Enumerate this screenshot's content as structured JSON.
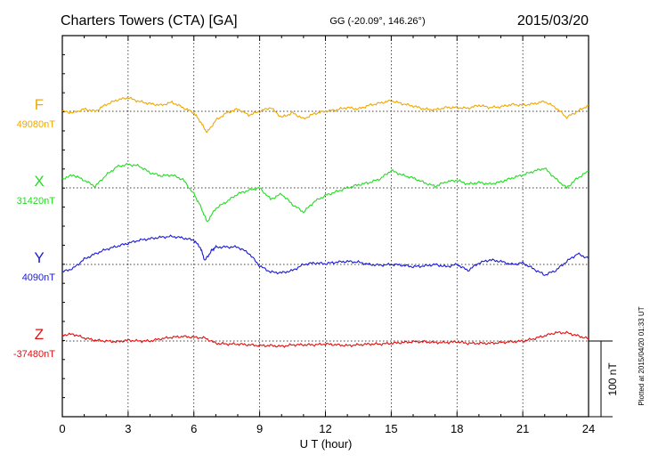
{
  "header": {
    "station": "Charters Towers (CTA)  [GA]",
    "coords": "GG (-20.09°, 146.26°)",
    "date": "2015/03/20"
  },
  "footer": {
    "plotted_note": "Plotted at 2015/04/20 01:33 UT"
  },
  "chart_data": {
    "type": "line",
    "xlabel": "U T (hour)",
    "xlim": [
      0,
      24
    ],
    "x_ticks": [
      0,
      3,
      6,
      9,
      12,
      15,
      18,
      21,
      24
    ],
    "grid": true,
    "scale_bar": {
      "label": "100 nT",
      "value_nT": 100
    },
    "series": [
      {
        "name": "F",
        "baseline_label": "49080nT",
        "baseline_nT": 49080,
        "color": "#f0a800",
        "x": [
          0,
          0.5,
          1,
          1.5,
          2,
          2.5,
          3,
          3.5,
          4,
          4.5,
          5,
          5.5,
          6,
          6.3,
          6.6,
          7,
          7.5,
          8,
          8.5,
          9,
          9.5,
          10,
          10.5,
          11,
          11.5,
          12,
          12.5,
          13,
          13.5,
          14,
          14.5,
          15,
          15.5,
          16,
          16.5,
          17,
          17.5,
          18,
          18.5,
          19,
          19.5,
          20,
          20.5,
          21,
          21.5,
          22,
          22.5,
          23,
          23.5,
          24
        ],
        "values": [
          49080,
          49078,
          49083,
          49080,
          49089,
          49095,
          49098,
          49093,
          49090,
          49088,
          49092,
          49085,
          49078,
          49066,
          49052,
          49068,
          49078,
          49083,
          49075,
          49080,
          49085,
          49072,
          49078,
          49070,
          49077,
          49080,
          49082,
          49085,
          49083,
          49088,
          49091,
          49094,
          49090,
          49087,
          49083,
          49082,
          49085,
          49085,
          49084,
          49088,
          49085,
          49086,
          49089,
          49088,
          49090,
          49093,
          49085,
          49072,
          49080,
          49088
        ]
      },
      {
        "name": "X",
        "baseline_label": "31420nT",
        "baseline_nT": 31420,
        "color": "#22dd22",
        "x": [
          0,
          0.5,
          1,
          1.5,
          2,
          2.5,
          3,
          3.5,
          4,
          4.5,
          5,
          5.5,
          6,
          6.3,
          6.6,
          7,
          7.5,
          8,
          8.5,
          9,
          9.5,
          10,
          10.5,
          11,
          11.5,
          12,
          12.5,
          13,
          13.5,
          14,
          14.5,
          15,
          15.5,
          16,
          16.5,
          17,
          17.5,
          18,
          18.5,
          19,
          19.5,
          20,
          20.5,
          21,
          21.5,
          22,
          22.5,
          23,
          23.5,
          24
        ],
        "values": [
          31432,
          31437,
          31430,
          31422,
          31437,
          31448,
          31451,
          31449,
          31440,
          31436,
          31437,
          31431,
          31412,
          31396,
          31375,
          31393,
          31402,
          31412,
          31417,
          31420,
          31405,
          31412,
          31398,
          31388,
          31402,
          31410,
          31415,
          31420,
          31424,
          31427,
          31432,
          31443,
          31437,
          31433,
          31427,
          31422,
          31428,
          31430,
          31425,
          31427,
          31425,
          31428,
          31433,
          31437,
          31442,
          31446,
          31432,
          31420,
          31433,
          31442
        ]
      },
      {
        "name": "Y",
        "baseline_label": "4090nT",
        "baseline_nT": 4090,
        "color": "#1a1ad8",
        "x": [
          0,
          0.5,
          1,
          1.5,
          2,
          2.5,
          3,
          3.5,
          4,
          4.5,
          5,
          5.5,
          6,
          6.3,
          6.5,
          6.8,
          7,
          7.5,
          8,
          8.5,
          9,
          9.5,
          10,
          10.5,
          11,
          11.5,
          12,
          12.5,
          13,
          13.5,
          14,
          14.5,
          15,
          15.5,
          16,
          16.5,
          17,
          17.5,
          18,
          18.5,
          19,
          19.5,
          20,
          20.5,
          21,
          21.5,
          22,
          22.5,
          23,
          23.5,
          24
        ],
        "values": [
          4080,
          4085,
          4097,
          4104,
          4110,
          4114,
          4118,
          4122,
          4124,
          4126,
          4127,
          4125,
          4122,
          4112,
          4095,
          4108,
          4113,
          4113,
          4113,
          4105,
          4088,
          4080,
          4079,
          4082,
          4090,
          4092,
          4091,
          4093,
          4094,
          4093,
          4090,
          4089,
          4090,
          4089,
          4087,
          4088,
          4090,
          4087,
          4090,
          4082,
          4092,
          4096,
          4094,
          4090,
          4092,
          4084,
          4076,
          4082,
          4094,
          4104,
          4098
        ]
      },
      {
        "name": "Z",
        "baseline_label": "-37480nT",
        "baseline_nT": -37480,
        "color": "#e01010",
        "x": [
          0,
          0.5,
          1,
          1.5,
          2,
          2.5,
          3,
          3.5,
          4,
          4.5,
          5,
          5.5,
          6,
          6.5,
          7,
          7.5,
          8,
          8.5,
          9,
          9.5,
          10,
          10.5,
          11,
          11.5,
          12,
          12.5,
          13,
          13.5,
          14,
          14.5,
          15,
          15.5,
          16,
          16.5,
          17,
          17.5,
          18,
          18.5,
          19,
          19.5,
          20,
          20.5,
          21,
          21.5,
          22,
          22.5,
          23,
          23.5,
          24
        ],
        "values": [
          -37472,
          -37471,
          -37476,
          -37479,
          -37480,
          -37481,
          -37479,
          -37480,
          -37480,
          -37477,
          -37475,
          -37474,
          -37475,
          -37476,
          -37483,
          -37484,
          -37484,
          -37485,
          -37486,
          -37486,
          -37487,
          -37485,
          -37485,
          -37485,
          -37484,
          -37485,
          -37486,
          -37485,
          -37484,
          -37484,
          -37483,
          -37482,
          -37481,
          -37481,
          -37482,
          -37482,
          -37481,
          -37483,
          -37483,
          -37483,
          -37482,
          -37481,
          -37480,
          -37477,
          -37473,
          -37469,
          -37469,
          -37473,
          -37477
        ]
      }
    ]
  }
}
